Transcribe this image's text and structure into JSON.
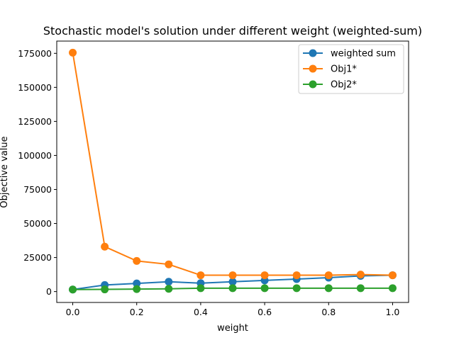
{
  "chart_data": {
    "type": "line",
    "title": "Stochastic model's solution under different weight (weighted-sum)",
    "xlabel": "weight",
    "ylabel": "Objective value",
    "xlim": [
      -0.05,
      1.05
    ],
    "ylim": [
      -8000,
      184000
    ],
    "xticks": [
      0.0,
      0.2,
      0.4,
      0.6,
      0.8,
      1.0
    ],
    "xtick_labels": [
      "0.0",
      "0.2",
      "0.4",
      "0.6",
      "0.8",
      "1.0"
    ],
    "yticks": [
      0,
      25000,
      50000,
      75000,
      100000,
      125000,
      150000,
      175000
    ],
    "ytick_labels": [
      "0",
      "25000",
      "50000",
      "75000",
      "100000",
      "125000",
      "150000",
      "175000"
    ],
    "grid": false,
    "legend_position": "upper right",
    "x": [
      0.0,
      0.1,
      0.2,
      0.3,
      0.4,
      0.5,
      0.6,
      0.7,
      0.8,
      0.9,
      1.0
    ],
    "series": [
      {
        "name": "weighted sum",
        "color": "#1f77b4",
        "marker": "circle",
        "values": [
          1500,
          4800,
          6000,
          7200,
          6200,
          7200,
          8200,
          9200,
          10200,
          11500,
          12000
        ]
      },
      {
        "name": "Obj1*",
        "color": "#ff7f0e",
        "marker": "circle",
        "values": [
          175500,
          33000,
          22500,
          20000,
          12000,
          12000,
          12000,
          12000,
          12000,
          12500,
          12000
        ]
      },
      {
        "name": "Obj2*",
        "color": "#2ca02c",
        "marker": "circle",
        "values": [
          1500,
          1600,
          1800,
          2000,
          2500,
          2500,
          2500,
          2500,
          2500,
          2500,
          2500
        ]
      }
    ]
  }
}
